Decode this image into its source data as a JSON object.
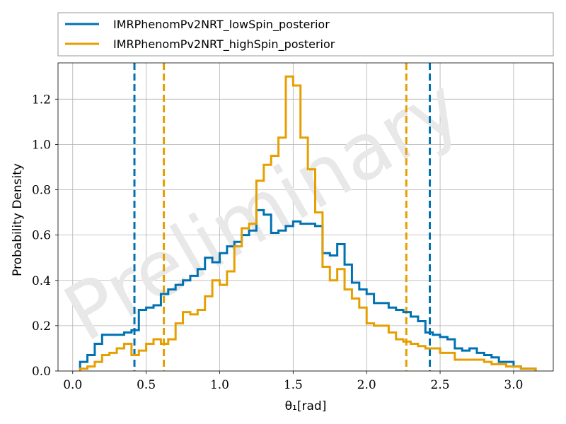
{
  "chart_data": {
    "type": "histogram",
    "title": "",
    "xlabel": "θ₁[rad]",
    "ylabel": "Probability Density",
    "xlim": [
      -0.1,
      3.27
    ],
    "ylim": [
      0,
      1.36
    ],
    "xticks": [
      "0.0",
      "0.5",
      "1.0",
      "1.5",
      "2.0",
      "2.5",
      "3.0"
    ],
    "yticks": [
      "0.0",
      "0.2",
      "0.4",
      "0.6",
      "0.8",
      "1.0",
      "1.2"
    ],
    "grid": true,
    "legend_position": "top, above plot",
    "watermark": "Preliminary",
    "bin_edges": [
      0.05,
      0.1,
      0.15,
      0.2,
      0.25,
      0.3,
      0.35,
      0.4,
      0.45,
      0.5,
      0.55,
      0.6,
      0.65,
      0.7,
      0.75,
      0.8,
      0.85,
      0.9,
      0.95,
      1.0,
      1.05,
      1.1,
      1.15,
      1.2,
      1.25,
      1.3,
      1.35,
      1.4,
      1.45,
      1.5,
      1.55,
      1.6,
      1.65,
      1.7,
      1.75,
      1.8,
      1.85,
      1.9,
      1.95,
      2.0,
      2.05,
      2.1,
      2.15,
      2.2,
      2.25,
      2.3,
      2.35,
      2.4,
      2.45,
      2.5,
      2.55,
      2.6,
      2.65,
      2.7,
      2.75,
      2.8,
      2.85,
      2.9,
      2.95,
      3.0,
      3.05,
      3.1,
      3.15
    ],
    "series": [
      {
        "name": "IMRPhenomPv2NRT_lowSpin_posterior",
        "color": "#0072b2",
        "values": [
          0.04,
          0.07,
          0.12,
          0.16,
          0.16,
          0.16,
          0.17,
          0.18,
          0.27,
          0.28,
          0.29,
          0.34,
          0.36,
          0.38,
          0.4,
          0.42,
          0.45,
          0.5,
          0.48,
          0.52,
          0.55,
          0.57,
          0.6,
          0.62,
          0.71,
          0.69,
          0.61,
          0.62,
          0.64,
          0.66,
          0.65,
          0.65,
          0.64,
          0.52,
          0.51,
          0.56,
          0.47,
          0.39,
          0.36,
          0.34,
          0.3,
          0.3,
          0.28,
          0.27,
          0.26,
          0.24,
          0.22,
          0.17,
          0.16,
          0.15,
          0.14,
          0.1,
          0.09,
          0.1,
          0.08,
          0.07,
          0.06,
          0.04,
          0.04,
          0.02,
          0.01,
          0.01
        ],
        "interval": [
          0.42,
          2.43
        ]
      },
      {
        "name": "IMRPhenomPv2NRT_highSpin_posterior",
        "color": "#e69f00",
        "values": [
          0.01,
          0.02,
          0.04,
          0.07,
          0.08,
          0.1,
          0.12,
          0.07,
          0.09,
          0.12,
          0.14,
          0.12,
          0.14,
          0.21,
          0.26,
          0.25,
          0.27,
          0.33,
          0.4,
          0.38,
          0.44,
          0.55,
          0.63,
          0.65,
          0.84,
          0.91,
          0.95,
          1.03,
          1.3,
          1.26,
          1.03,
          0.89,
          0.7,
          0.46,
          0.4,
          0.45,
          0.36,
          0.32,
          0.28,
          0.21,
          0.2,
          0.2,
          0.17,
          0.14,
          0.13,
          0.12,
          0.11,
          0.1,
          0.1,
          0.08,
          0.08,
          0.05,
          0.05,
          0.05,
          0.05,
          0.04,
          0.03,
          0.03,
          0.02,
          0.02,
          0.01,
          0.01
        ],
        "interval": [
          0.62,
          2.27
        ]
      }
    ]
  }
}
